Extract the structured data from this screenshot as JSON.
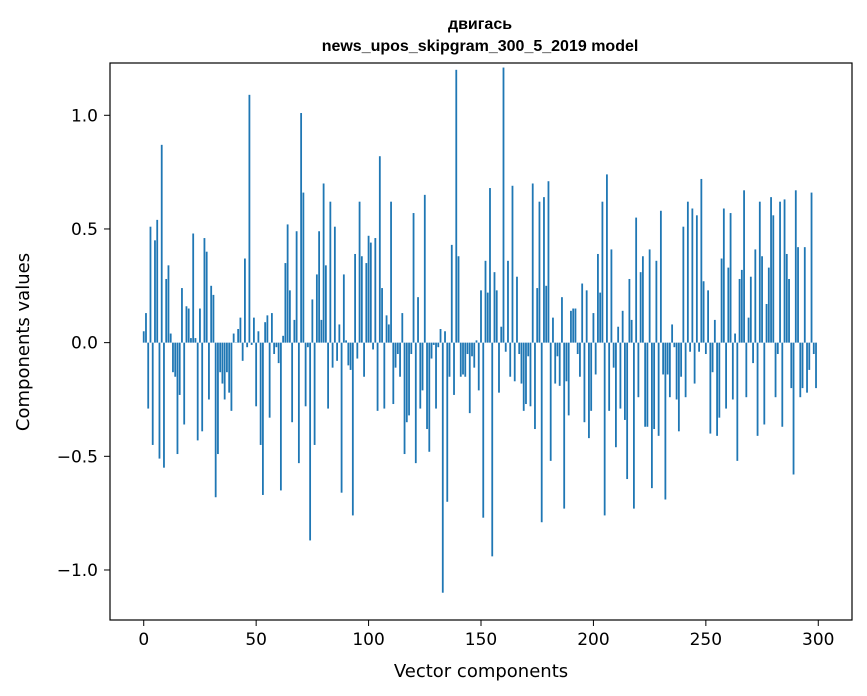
{
  "chart_data": {
    "type": "bar",
    "title_line1": "двигась",
    "title_line2": "news_upos_skipgram_300_5_2019 model",
    "xlabel": "Vector components",
    "ylabel": "Components values",
    "xlim": [
      -15,
      315
    ],
    "ylim": [
      -1.22,
      1.23
    ],
    "x_ticks": [
      0,
      50,
      100,
      150,
      200,
      250,
      300
    ],
    "x_tick_labels": [
      "0",
      "50",
      "100",
      "150",
      "200",
      "250",
      "300"
    ],
    "y_ticks": [
      -1.0,
      -0.5,
      0.0,
      0.5,
      1.0
    ],
    "y_tick_labels": [
      "−1.0",
      "−0.5",
      "0.0",
      "0.5",
      "1.0"
    ],
    "bar_color": "#1f77b4",
    "grid": false,
    "x_start": 0,
    "values": [
      0.05,
      0.13,
      -0.29,
      0.51,
      -0.45,
      0.45,
      0.54,
      -0.51,
      0.87,
      -0.55,
      0.28,
      0.34,
      0.04,
      -0.13,
      -0.15,
      -0.49,
      -0.23,
      0.24,
      -0.36,
      0.16,
      0.15,
      0.02,
      0.48,
      0.02,
      -0.43,
      0.15,
      -0.39,
      0.46,
      0.4,
      -0.25,
      0.25,
      0.21,
      -0.68,
      -0.49,
      -0.13,
      -0.18,
      -0.25,
      -0.13,
      -0.22,
      -0.3,
      0.04,
      0.0,
      0.06,
      0.11,
      -0.08,
      0.37,
      -0.02,
      1.09,
      -0.01,
      0.11,
      -0.28,
      0.05,
      -0.45,
      -0.67,
      0.09,
      0.12,
      -0.33,
      0.13,
      -0.05,
      -0.02,
      -0.09,
      -0.65,
      0.03,
      0.35,
      0.52,
      0.23,
      -0.35,
      0.1,
      0.49,
      -0.53,
      1.01,
      0.66,
      -0.28,
      -0.02,
      -0.87,
      0.19,
      -0.45,
      0.3,
      0.49,
      0.1,
      0.7,
      0.34,
      -0.29,
      0.62,
      -0.11,
      0.51,
      -0.08,
      0.08,
      -0.66,
      0.3,
      0.01,
      -0.1,
      -0.12,
      -0.76,
      0.39,
      -0.07,
      0.62,
      0.38,
      -0.15,
      0.35,
      0.47,
      0.44,
      -0.03,
      0.46,
      -0.3,
      0.82,
      0.24,
      -0.29,
      0.12,
      0.08,
      0.62,
      -0.27,
      -0.11,
      -0.05,
      -0.15,
      0.13,
      -0.49,
      -0.35,
      -0.32,
      -0.05,
      0.57,
      -0.53,
      0.2,
      -0.29,
      -0.21,
      0.65,
      -0.38,
      -0.48,
      -0.07,
      -0.01,
      -0.29,
      -0.02,
      0.06,
      -1.1,
      0.05,
      -0.7,
      -0.15,
      0.43,
      -0.23,
      1.2,
      0.38,
      -0.15,
      -0.14,
      -0.15,
      -0.05,
      -0.31,
      -0.06,
      -0.11,
      0.01,
      -0.21,
      0.23,
      -0.77,
      0.36,
      0.22,
      0.68,
      -0.94,
      0.31,
      0.23,
      -0.22,
      0.07,
      1.21,
      -0.04,
      0.36,
      -0.15,
      0.69,
      -0.17,
      0.29,
      -0.05,
      -0.18,
      -0.3,
      -0.27,
      -0.06,
      -0.28,
      0.7,
      -0.38,
      0.24,
      0.62,
      -0.79,
      0.64,
      0.25,
      0.71,
      -0.52,
      0.11,
      -0.18,
      -0.06,
      -0.19,
      0.2,
      -0.73,
      -0.17,
      -0.32,
      0.14,
      0.15,
      0.15,
      -0.05,
      -0.15,
      0.26,
      -0.35,
      0.23,
      -0.42,
      -0.3,
      0.13,
      -0.14,
      0.39,
      0.22,
      0.62,
      -0.76,
      0.74,
      -0.3,
      0.41,
      -0.11,
      -0.46,
      0.07,
      -0.29,
      0.14,
      -0.34,
      -0.6,
      0.28,
      0.1,
      -0.73,
      0.55,
      -0.24,
      0.31,
      0.38,
      -0.37,
      -0.37,
      0.41,
      -0.64,
      -0.38,
      0.36,
      -0.41,
      0.58,
      -0.14,
      -0.69,
      -0.14,
      -0.24,
      0.08,
      -0.02,
      -0.25,
      -0.39,
      -0.15,
      0.51,
      -0.24,
      0.62,
      -0.04,
      0.59,
      -0.18,
      0.56,
      -0.04,
      0.72,
      0.27,
      -0.05,
      0.23,
      -0.4,
      -0.13,
      0.1,
      -0.41,
      -0.33,
      0.37,
      0.59,
      -0.29,
      0.33,
      0.57,
      -0.25,
      0.04,
      -0.52,
      0.28,
      0.32,
      0.67,
      -0.24,
      0.11,
      0.29,
      -0.09,
      0.41,
      -0.41,
      0.62,
      0.38,
      -0.36,
      0.17,
      0.33,
      0.64,
      0.56,
      -0.24,
      -0.05,
      0.62,
      -0.37,
      0.63,
      0.39,
      0.28,
      -0.2,
      -0.58,
      0.67,
      0.42,
      -0.24,
      -0.2,
      0.42,
      -0.22,
      -0.12,
      0.66,
      -0.05,
      -0.2
    ]
  }
}
